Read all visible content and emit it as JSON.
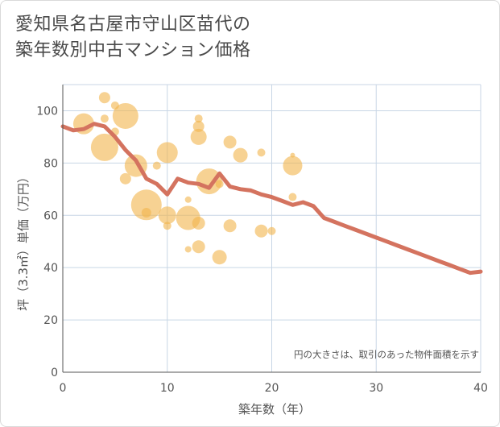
{
  "title_lines": [
    "愛知県名古屋市守山区苗代の",
    "築年数別中古マンション価格"
  ],
  "chart_data": {
    "type": "scatter",
    "title": "愛知県名古屋市守山区苗代の築年数別中古マンション価格",
    "xlabel": "築年数（年）",
    "ylabel": "坪（3.3㎡）単価（万円）",
    "xlim": [
      0,
      40
    ],
    "ylim": [
      0,
      110
    ],
    "xticks": [
      0,
      10,
      20,
      30,
      40
    ],
    "yticks": [
      0,
      20,
      40,
      60,
      80,
      100
    ],
    "grid": true,
    "note": "円の大きさは、取引のあった物件面積を示す",
    "colors": {
      "bubble": "#f2b44b",
      "line": "#d4735f",
      "grid": "#c8d6e5"
    },
    "bubbles": [
      {
        "x": 2,
        "y": 95,
        "size": 13
      },
      {
        "x": 4,
        "y": 105,
        "size": 7
      },
      {
        "x": 4,
        "y": 97,
        "size": 5
      },
      {
        "x": 4,
        "y": 86,
        "size": 17
      },
      {
        "x": 5,
        "y": 102,
        "size": 5
      },
      {
        "x": 5,
        "y": 92,
        "size": 5
      },
      {
        "x": 6,
        "y": 98,
        "size": 16
      },
      {
        "x": 6,
        "y": 74,
        "size": 7
      },
      {
        "x": 7,
        "y": 79,
        "size": 14
      },
      {
        "x": 8,
        "y": 64,
        "size": 19
      },
      {
        "x": 8,
        "y": 61,
        "size": 6
      },
      {
        "x": 9,
        "y": 79,
        "size": 5
      },
      {
        "x": 10,
        "y": 84,
        "size": 13
      },
      {
        "x": 10,
        "y": 60,
        "size": 11
      },
      {
        "x": 10,
        "y": 56,
        "size": 5
      },
      {
        "x": 12,
        "y": 66,
        "size": 4
      },
      {
        "x": 12,
        "y": 59,
        "size": 15
      },
      {
        "x": 12,
        "y": 47,
        "size": 4
      },
      {
        "x": 13,
        "y": 97,
        "size": 5
      },
      {
        "x": 13,
        "y": 94,
        "size": 7
      },
      {
        "x": 13,
        "y": 90,
        "size": 10
      },
      {
        "x": 13,
        "y": 57,
        "size": 8
      },
      {
        "x": 13,
        "y": 48,
        "size": 8
      },
      {
        "x": 14,
        "y": 73,
        "size": 16
      },
      {
        "x": 15,
        "y": 72,
        "size": 5
      },
      {
        "x": 15,
        "y": 44,
        "size": 9
      },
      {
        "x": 16,
        "y": 88,
        "size": 8
      },
      {
        "x": 16,
        "y": 56,
        "size": 8
      },
      {
        "x": 17,
        "y": 83,
        "size": 9
      },
      {
        "x": 19,
        "y": 84,
        "size": 5
      },
      {
        "x": 19,
        "y": 54,
        "size": 8
      },
      {
        "x": 20,
        "y": 54,
        "size": 5
      },
      {
        "x": 22,
        "y": 83,
        "size": 3
      },
      {
        "x": 22,
        "y": 79,
        "size": 12
      },
      {
        "x": 22,
        "y": 67,
        "size": 5
      }
    ],
    "series": [
      {
        "x": [
          0,
          1,
          2,
          3,
          4,
          5,
          6,
          7,
          8,
          9,
          10,
          11,
          12,
          13,
          14,
          15,
          16,
          17,
          18,
          19,
          20,
          21,
          22,
          23,
          24,
          25,
          26,
          27,
          28,
          29,
          30,
          31,
          32,
          33,
          34,
          35,
          36,
          37,
          38,
          39,
          40
        ],
        "y": [
          94,
          92.5,
          93,
          95,
          94,
          90,
          85,
          81,
          74,
          72,
          68,
          74,
          72.5,
          72,
          70.5,
          76,
          71,
          70,
          69.5,
          68,
          67,
          65.5,
          64,
          65,
          63.5,
          59,
          57.5,
          56,
          54.5,
          53,
          51.5,
          50,
          48.5,
          47,
          45.5,
          44,
          42.5,
          41,
          39.5,
          38,
          38.5
        ]
      }
    ]
  }
}
